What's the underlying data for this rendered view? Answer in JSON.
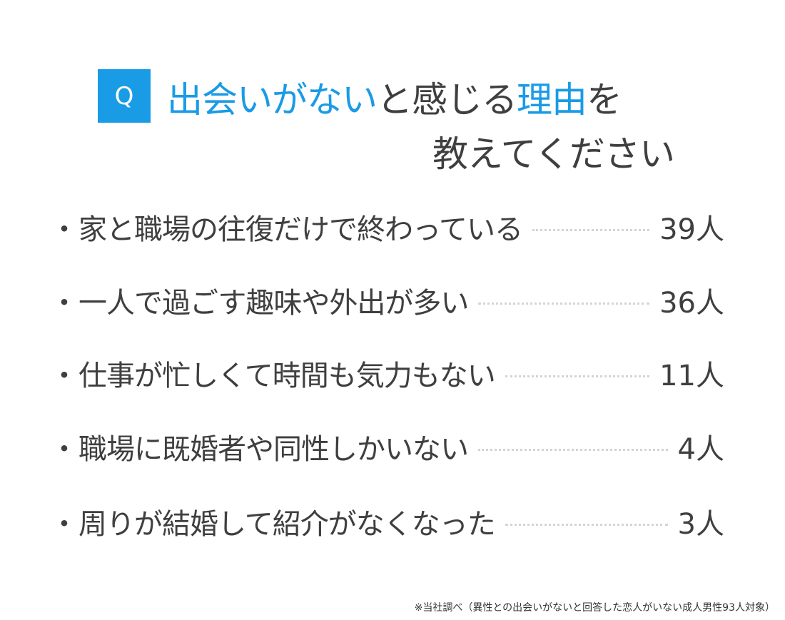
{
  "title": {
    "q_label": "Q",
    "line1": [
      {
        "text": "出会いがない",
        "highlight": true
      },
      {
        "text": "と感じる",
        "highlight": false
      },
      {
        "text": "理由",
        "highlight": true
      },
      {
        "text": "を",
        "highlight": false
      }
    ],
    "line2": "教えてください"
  },
  "items": [
    {
      "bullet": "・",
      "label": "家と職場の往復だけで終わっている",
      "value": "39人"
    },
    {
      "bullet": "・",
      "label": "一人で過ごす趣味や外出が多い",
      "value": "36人"
    },
    {
      "bullet": "・",
      "label": "仕事が忙しくて時間も気力もない",
      "value": "11人"
    },
    {
      "bullet": "・",
      "label": "職場に既婚者や同性しかいない",
      "value": "4人"
    },
    {
      "bullet": "・",
      "label": "周りが結婚して紹介がなくなった",
      "value": "3人"
    }
  ],
  "footnote": "※当社調べ（異性との出会いがないと回答した恋人がいない成人男性93人対象）",
  "colors": {
    "accent": "#1a9be6",
    "text": "#3f3f3f"
  }
}
